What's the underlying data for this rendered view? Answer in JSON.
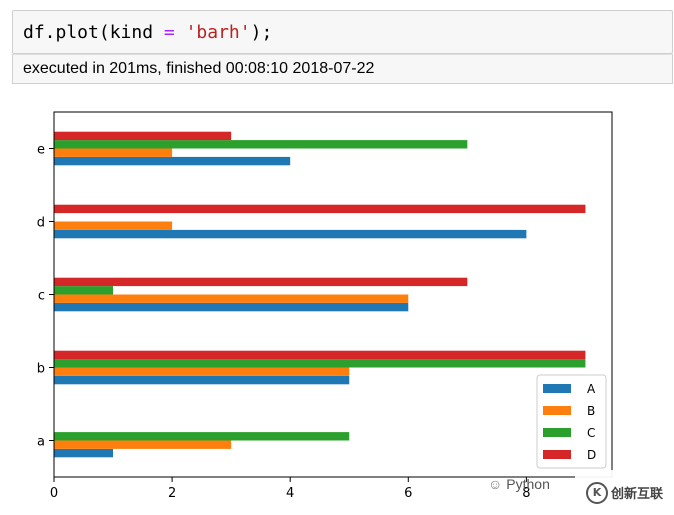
{
  "cell": {
    "code_prefix": "df.plot(kind ",
    "code_op": "=",
    "code_space": " ",
    "code_str": "'barh'",
    "code_suffix": ");",
    "exec_text": "executed in 201ms, finished 00:08:10 2018-07-22"
  },
  "watermark": {
    "python_label": "Python",
    "brand_text": "创新互联",
    "logo_glyph": "K"
  },
  "chart_data": {
    "type": "bar",
    "orientation": "horizontal",
    "categories": [
      "a",
      "b",
      "c",
      "d",
      "e"
    ],
    "series": [
      {
        "name": "A",
        "color": "#1f77b4",
        "values": [
          1,
          5,
          6,
          8,
          4
        ]
      },
      {
        "name": "B",
        "color": "#ff7f0e",
        "values": [
          3,
          5,
          6,
          2,
          2
        ]
      },
      {
        "name": "C",
        "color": "#2ca02c",
        "values": [
          5,
          9,
          1,
          0,
          7
        ]
      },
      {
        "name": "D",
        "color": "#d62728",
        "values": [
          0,
          9,
          7,
          9,
          3
        ]
      }
    ],
    "xticks": [
      0,
      2,
      4,
      6,
      8
    ],
    "xlim": [
      0,
      9.45
    ],
    "grid": false,
    "legend_position": "lower-right",
    "xlabel": "",
    "ylabel": "",
    "title": ""
  }
}
